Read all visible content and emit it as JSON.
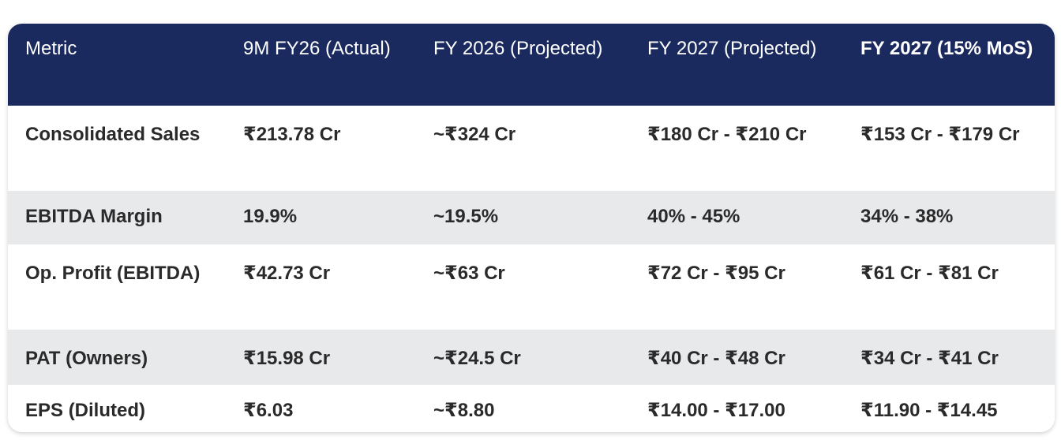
{
  "table": {
    "headers": [
      "Metric",
      "9M FY26 (Actual)",
      "FY 2026 (Projected)",
      "FY 2027 (Projected)",
      "FY 2027 (15% MoS)"
    ],
    "rows": [
      [
        "Consolidated Sales",
        "₹213.78 Cr",
        "~₹324 Cr",
        "₹180 Cr - ₹210 Cr",
        "₹153 Cr - ₹179 Cr"
      ],
      [
        "EBITDA Margin",
        "19.9%",
        "~19.5%",
        "40% - 45%",
        "34% - 38%"
      ],
      [
        "Op. Profit (EBITDA)",
        "₹42.73 Cr",
        "~₹63 Cr",
        "₹72 Cr - ₹95 Cr",
        "₹61 Cr - ₹81 Cr"
      ],
      [
        "PAT (Owners)",
        "₹15.98 Cr",
        "~₹24.5 Cr",
        "₹40 Cr - ₹48 Cr",
        "₹34 Cr - ₹41 Cr"
      ],
      [
        "EPS (Diluted)",
        "₹6.03",
        "~₹8.80",
        "₹14.00 - ₹17.00",
        "₹11.90 - ₹14.45"
      ]
    ]
  },
  "colors": {
    "header_bg": "#1b2a5e",
    "header_text": "#ffffff",
    "row_alt_bg": "#e8e9eb",
    "row_bg": "#ffffff",
    "body_text": "#2a2a2a"
  }
}
